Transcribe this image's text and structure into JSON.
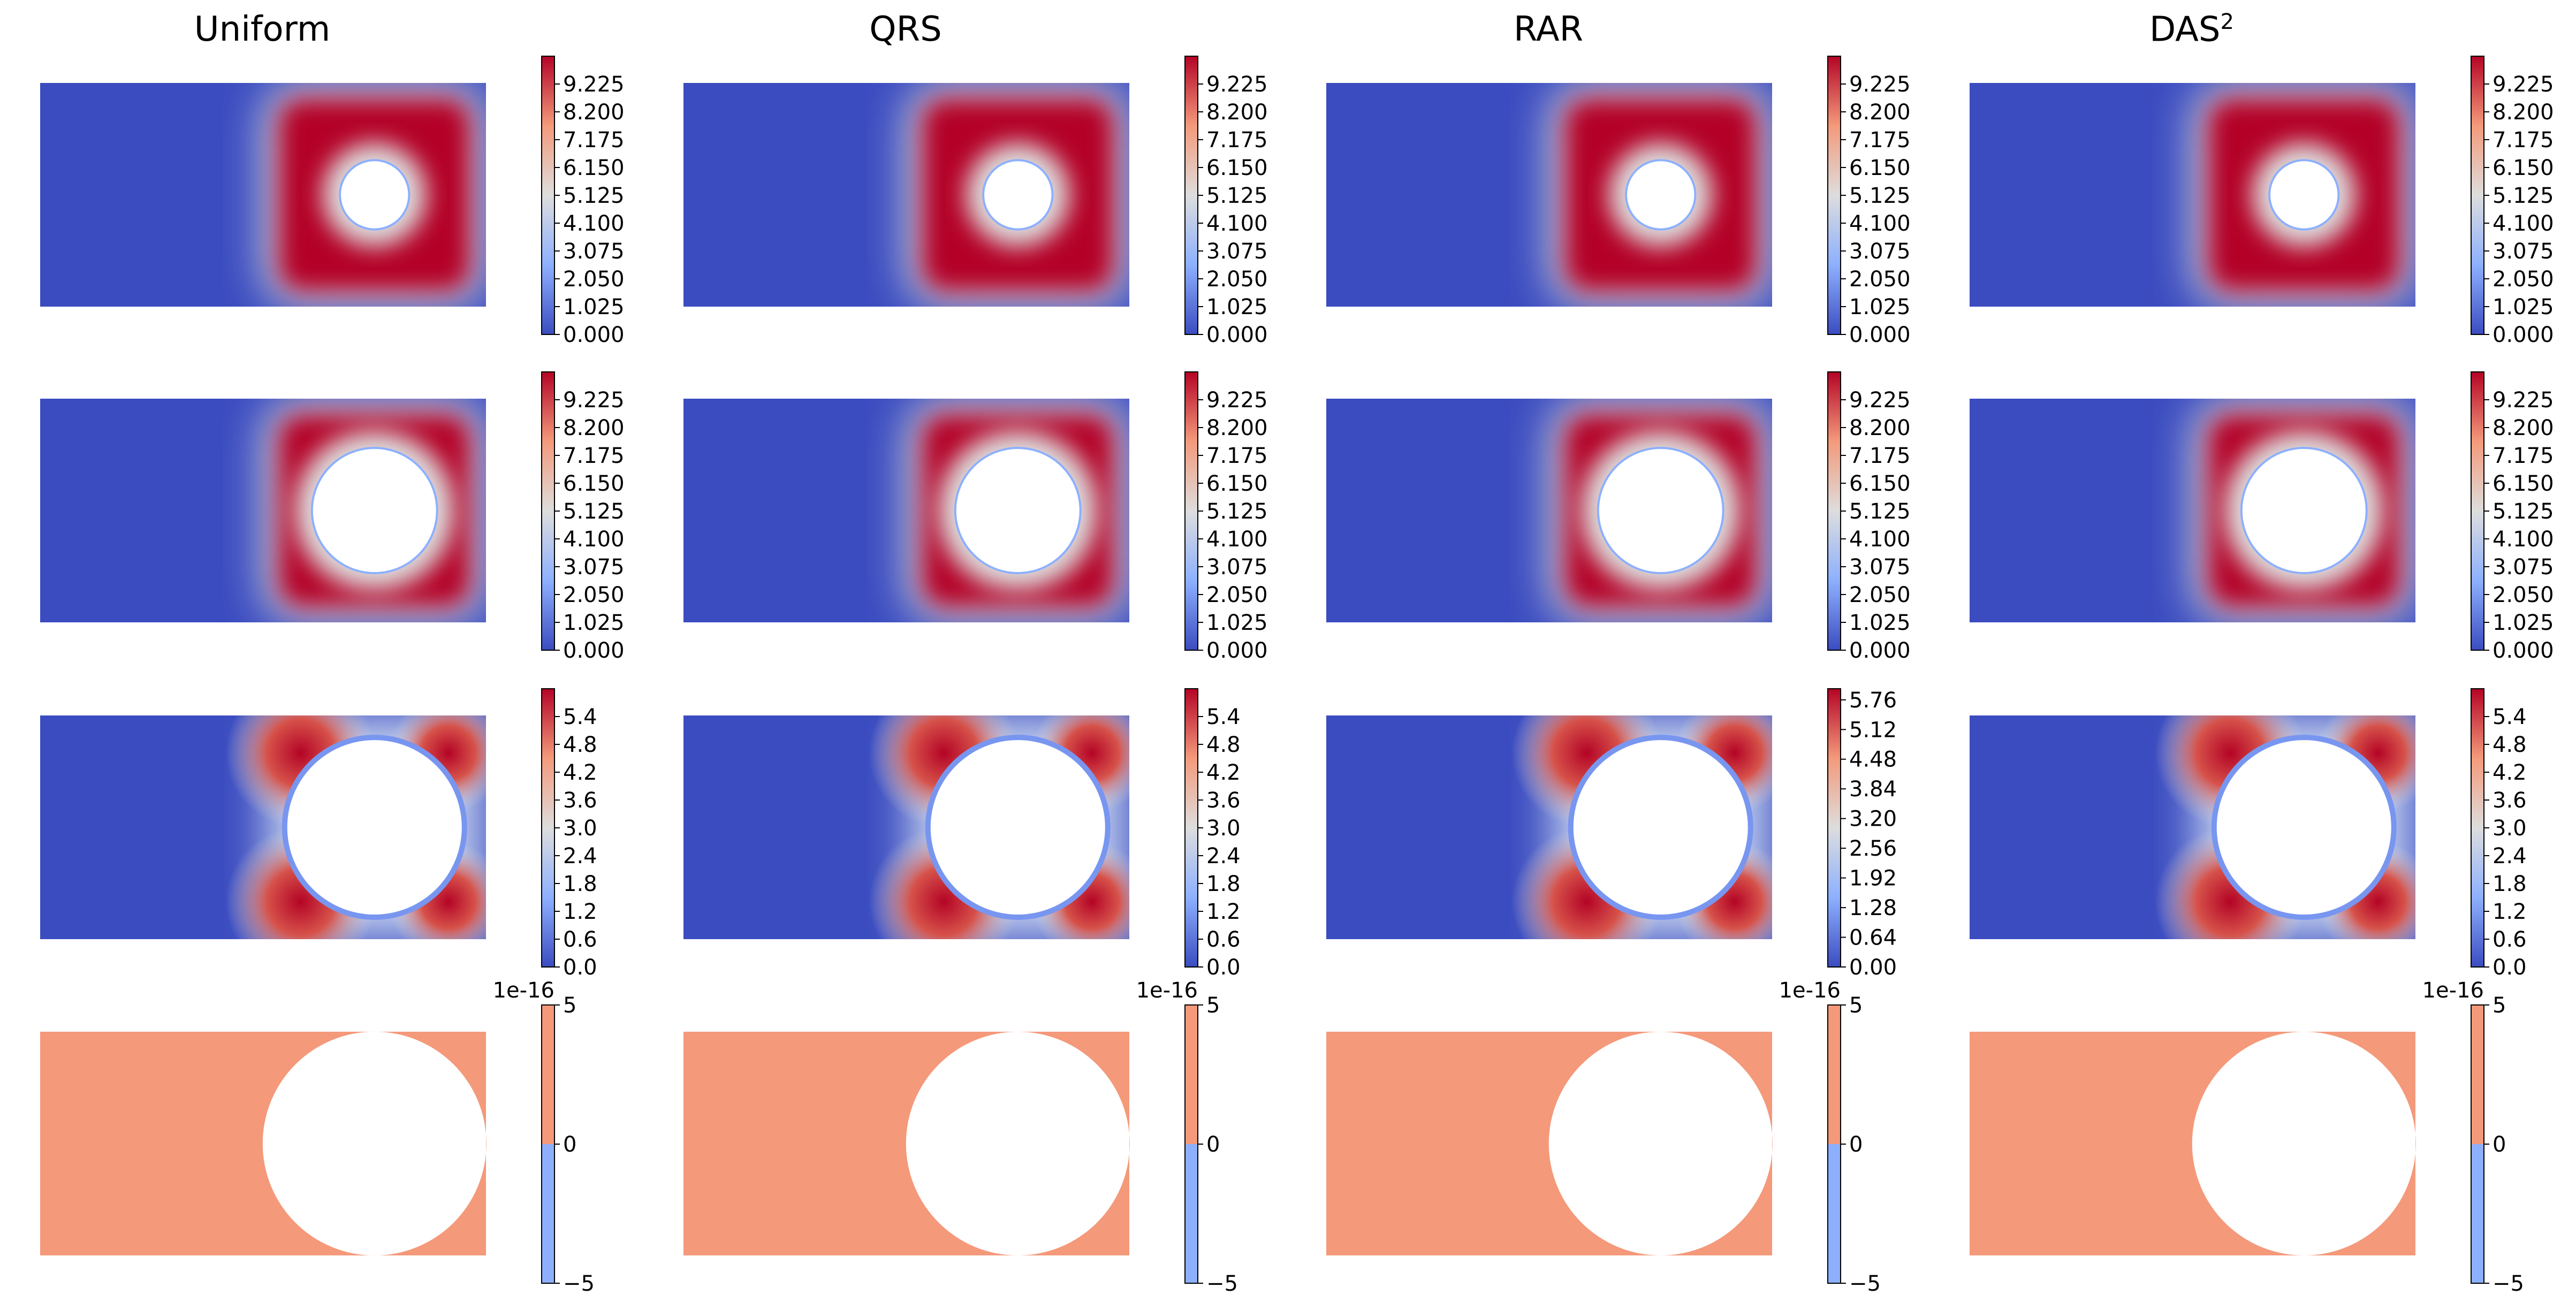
{
  "chart_data": {
    "type": "heatmap",
    "colormap": "coolwarm",
    "columns": [
      {
        "title": "Uniform",
        "superscript": ""
      },
      {
        "title": "QRS",
        "superscript": ""
      },
      {
        "title": "RAR",
        "superscript": ""
      },
      {
        "title": "DAS",
        "superscript": "2"
      }
    ],
    "rows": [
      {
        "kind": "field",
        "hole_radius": 0.3,
        "vmax": 10.25,
        "colorbar_ticks": [
          [
            "0.000",
            "1.025",
            "2.050",
            "3.075",
            "4.100",
            "5.125",
            "6.150",
            "7.175",
            "8.200",
            "9.225"
          ],
          [
            "0.000",
            "1.025",
            "2.050",
            "3.075",
            "4.100",
            "5.125",
            "6.150",
            "7.175",
            "8.200",
            "9.225"
          ],
          [
            "0.000",
            "1.025",
            "2.050",
            "3.075",
            "4.100",
            "5.125",
            "6.150",
            "7.175",
            "8.200",
            "9.225"
          ],
          [
            "0.000",
            "1.025",
            "2.050",
            "3.075",
            "4.100",
            "5.125",
            "6.150",
            "7.175",
            "8.200",
            "9.225"
          ]
        ]
      },
      {
        "kind": "field",
        "hole_radius": 0.55,
        "vmax": 10.25,
        "colorbar_ticks": [
          [
            "0.000",
            "1.025",
            "2.050",
            "3.075",
            "4.100",
            "5.125",
            "6.150",
            "7.175",
            "8.200",
            "9.225"
          ],
          [
            "0.000",
            "1.025",
            "2.050",
            "3.075",
            "4.100",
            "5.125",
            "6.150",
            "7.175",
            "8.200",
            "9.225"
          ],
          [
            "0.000",
            "1.025",
            "2.050",
            "3.075",
            "4.100",
            "5.125",
            "6.150",
            "7.175",
            "8.200",
            "9.225"
          ],
          [
            "0.000",
            "1.025",
            "2.050",
            "3.075",
            "4.100",
            "5.125",
            "6.150",
            "7.175",
            "8.200",
            "9.225"
          ]
        ]
      },
      {
        "kind": "corners",
        "hole_radius": 0.78,
        "vmax": 6.0,
        "colorbar_ticks": [
          [
            "0.0",
            "0.6",
            "1.2",
            "1.8",
            "2.4",
            "3.0",
            "3.6",
            "4.2",
            "4.8",
            "5.4"
          ],
          [
            "0.0",
            "0.6",
            "1.2",
            "1.8",
            "2.4",
            "3.0",
            "3.6",
            "4.2",
            "4.8",
            "5.4"
          ],
          [
            "0.00",
            "0.64",
            "1.28",
            "1.92",
            "2.56",
            "3.20",
            "3.84",
            "4.48",
            "5.12",
            "5.76"
          ],
          [
            "0.0",
            "0.6",
            "1.2",
            "1.8",
            "2.4",
            "3.0",
            "3.6",
            "4.2",
            "4.8",
            "5.4"
          ]
        ]
      },
      {
        "kind": "constant",
        "hole_radius": 1.0,
        "colorbar_offset": "1e-16",
        "colorbar_ticks": [
          [
            "−5",
            "0",
            "5"
          ],
          [
            "−5",
            "0",
            "5"
          ],
          [
            "−5",
            "0",
            "5"
          ],
          [
            "−5",
            "0",
            "5"
          ]
        ],
        "fill_color": "#f4997a"
      }
    ]
  }
}
